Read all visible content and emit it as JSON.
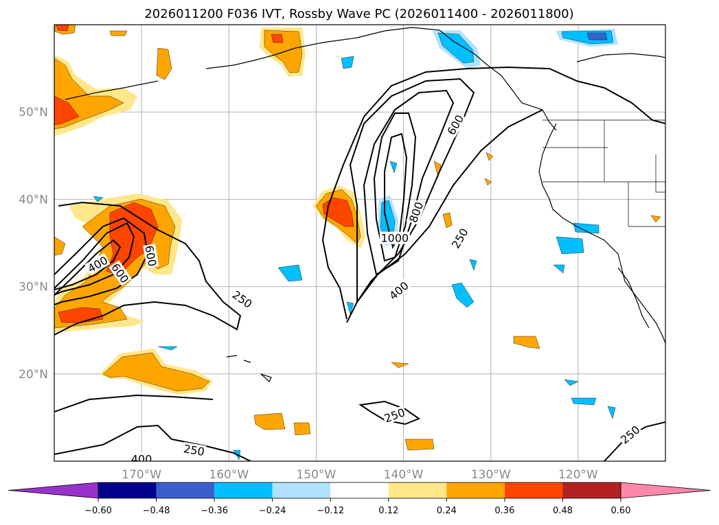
{
  "chart_data": {
    "type": "map-contour",
    "title": "2026011200 F036 IVT, Rossby Wave PC (2026011400 - 2026011800)",
    "map_extent": {
      "lon_min": -180,
      "lon_max": -110,
      "lat_min": 10,
      "lat_max": 60
    },
    "gridlines": true,
    "x_ticks": [
      {
        "value": -170,
        "label": "170°W"
      },
      {
        "value": -160,
        "label": "160°W"
      },
      {
        "value": -150,
        "label": "150°W"
      },
      {
        "value": -140,
        "label": "140°W"
      },
      {
        "value": -130,
        "label": "130°W"
      },
      {
        "value": -120,
        "label": "120°W"
      }
    ],
    "y_ticks": [
      {
        "value": 20,
        "label": "20°N"
      },
      {
        "value": 30,
        "label": "30°N"
      },
      {
        "value": 40,
        "label": "40°N"
      },
      {
        "value": 50,
        "label": "50°N"
      }
    ],
    "colorbar": {
      "orientation": "horizontal",
      "extend": "both",
      "levels": [
        -0.6,
        -0.48,
        -0.36,
        -0.24,
        -0.12,
        0.12,
        0.24,
        0.36,
        0.48,
        0.6
      ],
      "tick_labels": [
        "−0.60",
        "−0.48",
        "−0.36",
        "−0.24",
        "−0.12",
        "0.12",
        "0.24",
        "0.36",
        "0.48",
        "0.60"
      ],
      "colors": [
        "#9932CC",
        "#00008B",
        "#3A5FCD",
        "#00BFFF",
        "#B0E2FF",
        "#FFFFFF",
        "#FFE78A",
        "#FFA500",
        "#FF4500",
        "#B22222",
        "#FF88AA"
      ]
    },
    "ivt_contour_levels": [
      250,
      400,
      600,
      800,
      1000
    ],
    "contour_labels": [
      {
        "text": "250",
        "lon": -158.5,
        "lat": 28.5,
        "angle": 35
      },
      {
        "text": "250",
        "lon": -164,
        "lat": 11.2,
        "angle": 10
      },
      {
        "text": "250",
        "lon": -141,
        "lat": 15.2,
        "angle": -20
      },
      {
        "text": "250",
        "lon": -133.5,
        "lat": 35.5,
        "angle": -60
      },
      {
        "text": "250",
        "lon": -114,
        "lat": 13.0,
        "angle": -40
      },
      {
        "text": "400",
        "lon": -175,
        "lat": 32.5,
        "angle": -30
      },
      {
        "text": "400",
        "lon": -170,
        "lat": 10.2,
        "angle": 0
      },
      {
        "text": "400",
        "lon": -140.5,
        "lat": 29.5,
        "angle": -40
      },
      {
        "text": "600",
        "lon": -172.5,
        "lat": 31.5,
        "angle": 55
      },
      {
        "text": "600",
        "lon": -169,
        "lat": 33.5,
        "angle": 80
      },
      {
        "text": "600",
        "lon": -134,
        "lat": 48.5,
        "angle": -60
      },
      {
        "text": "800",
        "lon": -138.5,
        "lat": 38.5,
        "angle": -70
      },
      {
        "text": "1000",
        "lon": -141,
        "lat": 35.5,
        "angle": 0
      }
    ]
  }
}
